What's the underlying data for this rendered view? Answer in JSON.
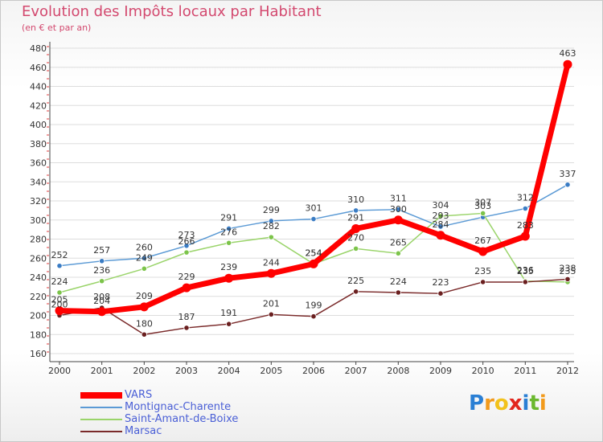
{
  "title": "Evolution des Impôts locaux par Habitant",
  "subtitle": "(en € et par an)",
  "logo": {
    "letters": [
      "P",
      "r",
      "o",
      "x",
      "i",
      "t",
      "i"
    ],
    "colors": [
      "#2a7fd4",
      "#f29a1b",
      "#f2c21b",
      "#e2261d",
      "#2a7fd4",
      "#6ab82e",
      "#f29a1b"
    ]
  },
  "chart_data": {
    "type": "line",
    "title": "Evolution des Impôts locaux par Habitant",
    "subtitle": "(en € et par an)",
    "categories": [
      "2000",
      "2001",
      "2002",
      "2003",
      "2004",
      "2005",
      "2006",
      "2007",
      "2008",
      "2009",
      "2010",
      "2011",
      "2012"
    ],
    "ylim": [
      160,
      480
    ],
    "yticks": [
      160,
      180,
      200,
      220,
      240,
      260,
      280,
      300,
      320,
      340,
      360,
      380,
      400,
      420,
      440,
      460,
      480
    ],
    "grid": "horizontal",
    "legend_position": "bottom-left",
    "series": [
      {
        "name": "Montignac-Charente",
        "color": "#5b9ad5",
        "marker": "#3a7cc4",
        "width": 1.5,
        "values": [
          252,
          257,
          260,
          273,
          291,
          299,
          301,
          310,
          311,
          293,
          303,
          312,
          337
        ],
        "labels": [
          "252",
          "257",
          "260",
          "273",
          "291",
          "299",
          "301",
          "310",
          "311",
          "293",
          "303",
          "312",
          "337"
        ]
      },
      {
        "name": "Saint-Amant-de-Boixe",
        "color": "#9ad46a",
        "marker": "#7cc44a",
        "width": 1.5,
        "values": [
          224,
          236,
          249,
          266,
          276,
          282,
          254,
          270,
          265,
          304,
          307,
          236,
          235
        ],
        "labels": [
          "224",
          "236",
          "249",
          "266",
          "276",
          "282",
          "254",
          "270",
          "265",
          "304",
          "307",
          "236",
          "235"
        ]
      },
      {
        "name": "Marsac",
        "color": "#7a2a2a",
        "marker": "#6a1f1f",
        "width": 1.5,
        "values": [
          200,
          208,
          180,
          187,
          191,
          201,
          199,
          225,
          224,
          223,
          235,
          235,
          238
        ],
        "labels": [
          "200",
          "208",
          "180",
          "187",
          "191",
          "201",
          "199",
          "225",
          "224",
          "223",
          "235",
          "235",
          "238"
        ]
      },
      {
        "name": "VARS",
        "color": "#ff0000",
        "marker": "#ff0000",
        "width": 7,
        "values": [
          205,
          204,
          209,
          229,
          239,
          244,
          254,
          291,
          300,
          284,
          267,
          283,
          463
        ],
        "labels": [
          "205",
          "204",
          "209",
          "229",
          "239",
          "244",
          "",
          "",
          "",
          "",
          "267",
          "283",
          "463"
        ]
      }
    ],
    "legend_order": [
      "VARS",
      "Montignac-Charente",
      "Saint-Amant-de-Boixe",
      "Marsac"
    ]
  }
}
